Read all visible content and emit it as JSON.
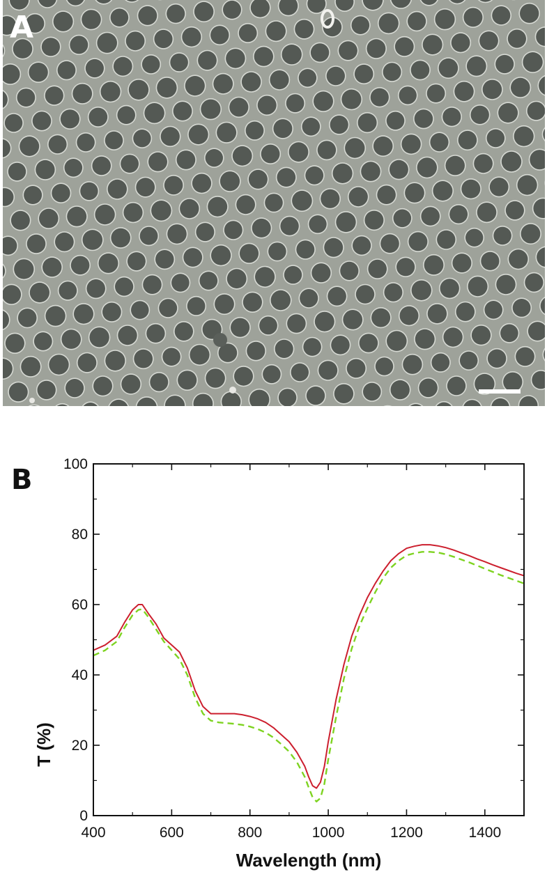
{
  "panels": {
    "a_label": "A",
    "b_label": "B"
  },
  "sem": {
    "background_color": "#9ea29a",
    "hole_color": "#545954",
    "rim_color": "#d6d9d3"
  },
  "chart_data": {
    "type": "line",
    "xlabel": "Wavelength (nm)",
    "ylabel": "T (%)",
    "xlim": [
      400,
      1500
    ],
    "ylim": [
      0,
      100
    ],
    "xticks": [
      400,
      600,
      800,
      1000,
      1200,
      1400
    ],
    "yticks": [
      0,
      20,
      40,
      60,
      80,
      100
    ],
    "grid": false,
    "series": [
      {
        "style": "solid",
        "color": "#cc1f2e",
        "x": [
          400,
          430,
          460,
          480,
          500,
          515,
          525,
          540,
          560,
          580,
          600,
          620,
          640,
          660,
          680,
          700,
          720,
          740,
          760,
          780,
          800,
          820,
          840,
          860,
          880,
          900,
          920,
          940,
          950,
          960,
          970,
          980,
          990,
          1000,
          1020,
          1040,
          1060,
          1080,
          1100,
          1120,
          1140,
          1160,
          1180,
          1200,
          1220,
          1240,
          1260,
          1280,
          1300,
          1320,
          1340,
          1360,
          1380,
          1400,
          1420,
          1440,
          1460,
          1480,
          1500
        ],
        "y": [
          47,
          48.5,
          51,
          55,
          58.5,
          60,
          60,
          57.5,
          54.5,
          50.5,
          48.5,
          46.5,
          42,
          35.5,
          31,
          29,
          29,
          29,
          29,
          28.7,
          28.2,
          27.5,
          26.5,
          25,
          23,
          21,
          18,
          14,
          11,
          8.5,
          7.8,
          9.5,
          14,
          21,
          33,
          43,
          51,
          57,
          62,
          66,
          69.5,
          72.5,
          74.5,
          76,
          76.6,
          77,
          77,
          76.7,
          76.2,
          75.5,
          74.7,
          73.9,
          73,
          72.2,
          71.3,
          70.5,
          69.7,
          68.9,
          68.2
        ]
      },
      {
        "style": "dashed",
        "color": "#7ed321",
        "x": [
          400,
          430,
          460,
          480,
          500,
          515,
          525,
          540,
          560,
          580,
          600,
          620,
          640,
          660,
          680,
          700,
          720,
          740,
          760,
          780,
          800,
          820,
          840,
          860,
          880,
          900,
          920,
          940,
          950,
          960,
          970,
          980,
          990,
          1000,
          1020,
          1040,
          1060,
          1080,
          1100,
          1120,
          1140,
          1160,
          1180,
          1200,
          1220,
          1240,
          1260,
          1280,
          1300,
          1320,
          1340,
          1360,
          1380,
          1400,
          1420,
          1440,
          1460,
          1480,
          1500
        ],
        "y": [
          45.5,
          47,
          49.5,
          53.5,
          57,
          58.5,
          58.7,
          56.5,
          53,
          49.5,
          47,
          44.5,
          40,
          33.5,
          29,
          27,
          26.5,
          26.3,
          26.1,
          25.8,
          25.3,
          24.6,
          23.6,
          22.2,
          20.3,
          18.2,
          15.2,
          11,
          8,
          5.2,
          4,
          5,
          9,
          16,
          28,
          39,
          47.5,
          54,
          59,
          63.5,
          67.5,
          70.5,
          72.5,
          74,
          74.6,
          75,
          75,
          74.8,
          74.3,
          73.6,
          72.8,
          72,
          71.1,
          70.2,
          69.3,
          68.4,
          67.6,
          66.8,
          66
        ]
      }
    ]
  }
}
